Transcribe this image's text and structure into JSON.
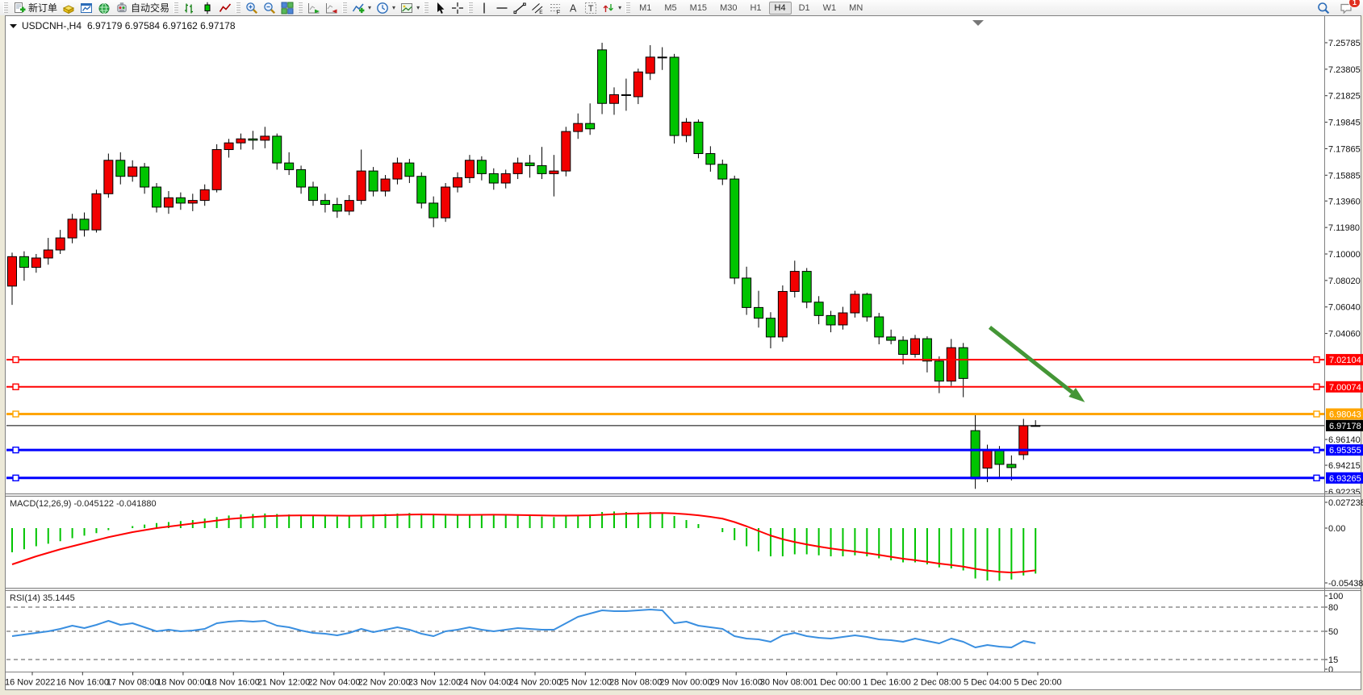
{
  "window": {
    "badge_count": "1"
  },
  "toolbar": {
    "groups": [
      {
        "items": [
          {
            "name": "new-order-button",
            "icon": "doc-plus-icon",
            "label": "新订单"
          },
          {
            "name": "deposit-button",
            "icon": "gold-icon"
          },
          {
            "name": "new-chart-button",
            "icon": "chart-window-icon"
          },
          {
            "name": "community-button",
            "icon": "globe-icon"
          },
          {
            "name": "algo-trading-button",
            "icon": "robot-icon",
            "label": "自动交易"
          }
        ]
      },
      {
        "items": [
          {
            "name": "bar-chart-button",
            "icon": "bars-icon"
          },
          {
            "name": "candlestick-button",
            "icon": "candle-icon"
          },
          {
            "name": "line-chart-button",
            "icon": "line-icon"
          }
        ]
      },
      {
        "items": [
          {
            "name": "zoom-in-button",
            "icon": "zoom-in-icon"
          },
          {
            "name": "zoom-out-button",
            "icon": "zoom-out-icon"
          },
          {
            "name": "tile-windows-button",
            "icon": "tile-icon"
          }
        ]
      },
      {
        "items": [
          {
            "name": "auto-scroll-button",
            "icon": "auto-scroll-icon"
          },
          {
            "name": "chart-shift-button",
            "icon": "chart-shift-icon"
          }
        ]
      },
      {
        "items": [
          {
            "name": "indicators-button",
            "icon": "indicators-icon",
            "caret": true
          },
          {
            "name": "periods-button",
            "icon": "clock-icon",
            "caret": true
          },
          {
            "name": "templates-button",
            "icon": "template-icon",
            "caret": true
          }
        ]
      },
      {
        "items": [
          {
            "name": "cursor-button",
            "icon": "cursor-icon"
          },
          {
            "name": "crosshair-button",
            "icon": "crosshair-icon"
          }
        ]
      },
      {
        "items": [
          {
            "name": "vertical-line-button",
            "icon": "vline-icon"
          },
          {
            "name": "horizontal-line-button",
            "icon": "hline-icon"
          },
          {
            "name": "trendline-button",
            "icon": "trendline-icon"
          },
          {
            "name": "channel-button",
            "icon": "channel-icon"
          },
          {
            "name": "fibonacci-button",
            "icon": "fibo-icon"
          },
          {
            "name": "label-button",
            "icon": "label-a-icon"
          },
          {
            "name": "text-button",
            "icon": "text-t-icon"
          },
          {
            "name": "arrows-button",
            "icon": "arrows-icon",
            "caret": true
          }
        ]
      }
    ],
    "timeframes": [
      {
        "label": "M1"
      },
      {
        "label": "M5"
      },
      {
        "label": "M15"
      },
      {
        "label": "M30"
      },
      {
        "label": "H1"
      },
      {
        "label": "H4",
        "active": true
      },
      {
        "label": "D1"
      },
      {
        "label": "W1"
      },
      {
        "label": "MN"
      }
    ],
    "right": [
      {
        "name": "search-button",
        "icon": "search-icon"
      },
      {
        "name": "chat-button",
        "icon": "chat-icon",
        "badge": "1"
      }
    ]
  },
  "chart": {
    "title": "USDCNH-,H4",
    "title_ohlc": "6.97179 6.97584 6.97162 6.97178",
    "macd_line": "MACD(12,26,9) -0.045122 -0.041880",
    "rsi_line": "RSI(14) 35.1445",
    "colors": {
      "up": "#F20000",
      "down": "#00C400",
      "candle_border": "#000000",
      "macd_hist": "#00C400",
      "macd_signal": "#FF0000",
      "rsi_line": "#3A8FE0",
      "arrow": "#449636",
      "line_red": "#FF0000",
      "line_orange": "#FFA500",
      "line_blue": "#0000FF",
      "line_black": "#000000"
    }
  },
  "chart_data": {
    "type": "candlestick",
    "symbol": "USDCNH-",
    "period": "H4",
    "title": "USDCNH-,H4 6.97179 6.97584 6.97162 6.97178",
    "ohlc_current": {
      "open": 6.97179,
      "high": 6.97584,
      "low": 6.97162,
      "close": 6.97178
    },
    "up_color_convention": "red-up-green-down (CN)",
    "bars": [
      [
        7.076,
        7.101,
        7.062,
        7.098
      ],
      [
        7.098,
        7.102,
        7.08,
        7.09
      ],
      [
        7.09,
        7.1,
        7.086,
        7.097
      ],
      [
        7.097,
        7.112,
        7.092,
        7.103
      ],
      [
        7.103,
        7.118,
        7.1,
        7.112
      ],
      [
        7.112,
        7.13,
        7.108,
        7.126
      ],
      [
        7.126,
        7.131,
        7.113,
        7.118
      ],
      [
        7.118,
        7.148,
        7.116,
        7.145
      ],
      [
        7.145,
        7.175,
        7.142,
        7.17
      ],
      [
        7.17,
        7.176,
        7.152,
        7.158
      ],
      [
        7.158,
        7.17,
        7.154,
        7.165
      ],
      [
        7.165,
        7.168,
        7.145,
        7.15
      ],
      [
        7.15,
        7.153,
        7.131,
        7.135
      ],
      [
        7.135,
        7.147,
        7.13,
        7.142
      ],
      [
        7.142,
        7.146,
        7.133,
        7.138
      ],
      [
        7.138,
        7.145,
        7.132,
        7.14
      ],
      [
        7.14,
        7.152,
        7.136,
        7.148
      ],
      [
        7.148,
        7.182,
        7.146,
        7.178
      ],
      [
        7.178,
        7.186,
        7.172,
        7.183
      ],
      [
        7.183,
        7.19,
        7.178,
        7.186
      ],
      [
        7.186,
        7.192,
        7.178,
        7.185
      ],
      [
        7.185,
        7.195,
        7.179,
        7.188
      ],
      [
        7.188,
        7.19,
        7.163,
        7.168
      ],
      [
        7.168,
        7.176,
        7.159,
        7.163
      ],
      [
        7.163,
        7.166,
        7.145,
        7.15
      ],
      [
        7.15,
        7.154,
        7.136,
        7.14
      ],
      [
        7.14,
        7.145,
        7.131,
        7.137
      ],
      [
        7.137,
        7.142,
        7.127,
        7.132
      ],
      [
        7.132,
        7.144,
        7.129,
        7.14
      ],
      [
        7.14,
        7.178,
        7.137,
        7.162
      ],
      [
        7.162,
        7.165,
        7.143,
        7.147
      ],
      [
        7.147,
        7.159,
        7.143,
        7.156
      ],
      [
        7.156,
        7.172,
        7.152,
        7.168
      ],
      [
        7.168,
        7.171,
        7.153,
        7.158
      ],
      [
        7.158,
        7.161,
        7.134,
        7.138
      ],
      [
        7.138,
        7.143,
        7.12,
        7.127
      ],
      [
        7.127,
        7.153,
        7.124,
        7.15
      ],
      [
        7.15,
        7.161,
        7.146,
        7.157
      ],
      [
        7.157,
        7.174,
        7.153,
        7.17
      ],
      [
        7.17,
        7.173,
        7.155,
        7.16
      ],
      [
        7.16,
        7.164,
        7.148,
        7.153
      ],
      [
        7.153,
        7.163,
        7.149,
        7.16
      ],
      [
        7.16,
        7.172,
        7.156,
        7.168
      ],
      [
        7.168,
        7.174,
        7.157,
        7.166
      ],
      [
        7.166,
        7.18,
        7.156,
        7.16
      ],
      [
        7.16,
        7.174,
        7.143,
        7.162
      ],
      [
        7.162,
        7.195,
        7.158,
        7.1915
      ],
      [
        7.1915,
        7.205,
        7.186,
        7.1975
      ],
      [
        7.1975,
        7.2125,
        7.189,
        7.1935
      ],
      [
        7.2525,
        7.2578,
        7.2045,
        7.2125
      ],
      [
        7.2125,
        7.2245,
        7.204,
        7.219
      ],
      [
        7.219,
        7.231,
        7.207,
        7.2185
      ],
      [
        7.2175,
        7.2385,
        7.212,
        7.236
      ],
      [
        7.235,
        7.256,
        7.23,
        7.2471
      ],
      [
        7.2471,
        7.2545,
        7.2375,
        7.247
      ],
      [
        7.247,
        7.2495,
        7.1825,
        7.1885
      ],
      [
        7.1885,
        7.2015,
        7.1835,
        7.1985
      ],
      [
        7.1985,
        7.2005,
        7.1715,
        7.175
      ],
      [
        7.175,
        7.1805,
        7.1615,
        7.167
      ],
      [
        7.167,
        7.1705,
        7.1515,
        7.156
      ],
      [
        7.156,
        7.1585,
        7.0775,
        7.082
      ],
      [
        7.082,
        7.0905,
        7.0545,
        7.06
      ],
      [
        7.06,
        7.0725,
        7.045,
        7.052
      ],
      [
        7.052,
        7.0565,
        7.0295,
        7.038
      ],
      [
        7.038,
        7.0765,
        7.0345,
        7.072
      ],
      [
        7.072,
        7.095,
        7.0675,
        7.087
      ],
      [
        7.087,
        7.0895,
        7.0595,
        7.064
      ],
      [
        7.064,
        7.0685,
        7.0475,
        7.054
      ],
      [
        7.054,
        7.0575,
        7.0415,
        7.047
      ],
      [
        7.047,
        7.0605,
        7.0435,
        7.056
      ],
      [
        7.056,
        7.0725,
        7.0525,
        7.0699
      ],
      [
        7.0699,
        7.071,
        7.0495,
        7.053
      ],
      [
        7.053,
        7.056,
        7.0325,
        7.038
      ],
      [
        7.038,
        7.0435,
        7.0325,
        7.0355
      ],
      [
        7.0355,
        7.0385,
        7.0175,
        7.025
      ],
      [
        7.025,
        7.0395,
        7.0225,
        7.0367
      ],
      [
        7.0367,
        7.0385,
        7.0115,
        7.02
      ],
      [
        7.02,
        7.0235,
        6.996,
        7.005
      ],
      [
        7.005,
        7.0365,
        7.0015,
        7.03
      ],
      [
        7.03,
        7.0335,
        6.993,
        7.007
      ],
      [
        6.968,
        6.981,
        6.9245,
        6.932
      ],
      [
        6.94,
        6.9575,
        6.9295,
        6.9536
      ],
      [
        6.9536,
        6.9565,
        6.9325,
        6.9428
      ],
      [
        6.9428,
        6.9495,
        6.9308,
        6.9404
      ],
      [
        6.95,
        6.9768,
        6.9462,
        6.9717
      ],
      [
        6.97179,
        6.97584,
        6.97162,
        6.97178
      ]
    ],
    "price_axis_ticks": [
      "7.25785",
      "7.23805",
      "7.21825",
      "7.19845",
      "7.17865",
      "7.15885",
      "7.13960",
      "7.11980",
      "7.10000",
      "7.08020",
      "7.06040",
      "7.04060",
      "6.96140",
      "6.94215",
      "6.92235"
    ],
    "hlines": [
      {
        "price": 7.02104,
        "label": "7.02104",
        "color": "#FF0000",
        "width": 2
      },
      {
        "price": 7.00074,
        "label": "7.00074",
        "color": "#FF0000",
        "width": 2
      },
      {
        "price": 6.98043,
        "label": "6.98043",
        "color": "#FFA500",
        "width": 3
      },
      {
        "price": 6.95355,
        "label": "6.95355",
        "color": "#0000FF",
        "width": 3
      },
      {
        "price": 6.93265,
        "label": "6.93265",
        "color": "#0000FF",
        "width": 3
      }
    ],
    "current_price": {
      "value": 6.97178,
      "label": "6.97178"
    },
    "arrow_annotation": {
      "from_bar": 81.2,
      "from_price": 7.0452,
      "to_bar": 89.1,
      "to_price": 6.9892
    },
    "macd": {
      "label": "MACD(12,26,9)",
      "value": -0.045122,
      "signal_value": -0.04188,
      "axis_ticks": [
        "0.027238",
        "0.00",
        "-0.054384"
      ],
      "axis_range": [
        0.027238,
        -0.054384
      ],
      "histogram": [
        -0.024,
        -0.021,
        -0.018,
        -0.0155,
        -0.013,
        -0.01,
        -0.0075,
        -0.005,
        -0.002,
        0.0,
        0.002,
        0.0035,
        0.005,
        0.006,
        0.007,
        0.008,
        0.0095,
        0.011,
        0.0125,
        0.0135,
        0.014,
        0.0145,
        0.014,
        0.0135,
        0.013,
        0.0125,
        0.012,
        0.0115,
        0.012,
        0.013,
        0.0135,
        0.014,
        0.0145,
        0.015,
        0.0145,
        0.013,
        0.0125,
        0.013,
        0.0135,
        0.014,
        0.0135,
        0.013,
        0.0125,
        0.012,
        0.0115,
        0.011,
        0.012,
        0.013,
        0.0135,
        0.016,
        0.0165,
        0.016,
        0.0155,
        0.016,
        0.0155,
        0.012,
        0.008,
        0.004,
        0.0,
        -0.004,
        -0.012,
        -0.018,
        -0.023,
        -0.028,
        -0.028,
        -0.026,
        -0.026,
        -0.027,
        -0.028,
        -0.028,
        -0.027,
        -0.028,
        -0.03,
        -0.032,
        -0.034,
        -0.034,
        -0.036,
        -0.039,
        -0.04,
        -0.042,
        -0.05,
        -0.052,
        -0.0523,
        -0.051,
        -0.047,
        -0.045122
      ],
      "signal": [
        -0.036,
        -0.032,
        -0.028,
        -0.0245,
        -0.021,
        -0.018,
        -0.015,
        -0.012,
        -0.009,
        -0.0065,
        -0.004,
        -0.002,
        0.0,
        0.0015,
        0.003,
        0.0045,
        0.006,
        0.0075,
        0.009,
        0.01,
        0.011,
        0.0118,
        0.0122,
        0.0125,
        0.0126,
        0.0126,
        0.0125,
        0.0124,
        0.0123,
        0.0124,
        0.0126,
        0.0128,
        0.0131,
        0.0134,
        0.0136,
        0.0135,
        0.0133,
        0.0131,
        0.0131,
        0.0132,
        0.0133,
        0.0132,
        0.013,
        0.0128,
        0.0126,
        0.0124,
        0.0124,
        0.0125,
        0.0127,
        0.0132,
        0.0138,
        0.0142,
        0.0145,
        0.0148,
        0.015,
        0.0146,
        0.0138,
        0.0127,
        0.0112,
        0.0094,
        0.006,
        0.0018,
        -0.0028,
        -0.0074,
        -0.011,
        -0.0138,
        -0.0162,
        -0.0183,
        -0.0202,
        -0.0218,
        -0.0232,
        -0.0248,
        -0.0266,
        -0.0285,
        -0.0304,
        -0.0318,
        -0.0334,
        -0.0352,
        -0.0366,
        -0.0382,
        -0.0404,
        -0.0421,
        -0.0434,
        -0.0441,
        -0.0433,
        -0.04188
      ]
    },
    "rsi": {
      "label": "RSI(14)",
      "value": 35.1445,
      "axis_ticks": [
        "100",
        "80",
        "50",
        "15",
        "0"
      ],
      "levels": [
        80,
        50,
        15
      ],
      "axis_range": [
        100,
        0
      ],
      "values": [
        44,
        46,
        48,
        50,
        53,
        57,
        54,
        58,
        63,
        58,
        60,
        55,
        50,
        52,
        50,
        51,
        53,
        60,
        62,
        63,
        62,
        63,
        57,
        55,
        51,
        48,
        47,
        45,
        48,
        53,
        49,
        52,
        55,
        52,
        47,
        44,
        50,
        52,
        55,
        52,
        50,
        52,
        54,
        53,
        52,
        52,
        60,
        68,
        72,
        76,
        75,
        75,
        76,
        77,
        76,
        60,
        62,
        57,
        55,
        53,
        44,
        41,
        40,
        37,
        45,
        48,
        44,
        42,
        41,
        43,
        45,
        43,
        40,
        39,
        37,
        41,
        38,
        35,
        41,
        37,
        30,
        33,
        31,
        30,
        38,
        35.14
      ]
    },
    "time_labels": [
      "16 Nov 2022",
      "16 Nov 16:00",
      "17 Nov 08:00",
      "18 Nov 00:00",
      "18 Nov 16:00",
      "21 Nov 12:00",
      "22 Nov 04:00",
      "22 Nov 20:00",
      "23 Nov 12:00",
      "24 Nov 04:00",
      "24 Nov 20:00",
      "25 Nov 12:00",
      "28 Nov 08:00",
      "29 Nov 00:00",
      "29 Nov 16:00",
      "30 Nov 08:00",
      "1 Dec 00:00",
      "1 Dec 16:00",
      "2 Dec 08:00",
      "5 Dec 04:00",
      "5 Dec 20:00"
    ]
  }
}
